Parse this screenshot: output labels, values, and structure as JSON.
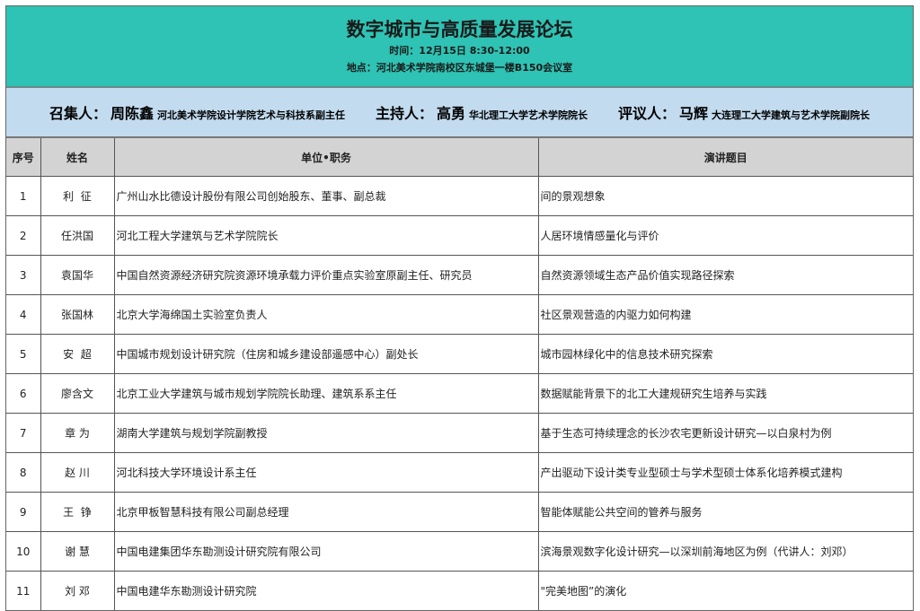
{
  "header": {
    "title": "数字城市与高质量发展论坛",
    "time": "时间：12月15日 8:30-12:00",
    "location": "地点：河北美术学院南校区东城堡一楼B150会议室"
  },
  "officials": [
    {
      "role": "召集人：",
      "name": "周陈鑫",
      "affiliation": "河北美术学院设计学院艺术与科技系副主任"
    },
    {
      "role": "主持人：",
      "name": "高勇",
      "affiliation": "华北理工大学艺术学院院长"
    },
    {
      "role": "评议人：",
      "name": "马辉",
      "affiliation": "大连理工大学建筑与艺术学院副院长"
    }
  ],
  "columns": [
    "序号",
    "姓名",
    "单位•职务",
    "演讲题目"
  ],
  "rows": [
    {
      "no": "1",
      "name": "利  征",
      "unit": "广州山水比德设计股份有限公司创始股东、董事、副总裁",
      "topic": "间的景观想象"
    },
    {
      "no": "2",
      "name": "任洪国",
      "unit": "河北工程大学建筑与艺术学院院长",
      "topic": "人居环境情感量化与评价"
    },
    {
      "no": "3",
      "name": "袁国华",
      "unit": "中国自然资源经济研究院资源环境承载力评价重点实验室原副主任、研究员",
      "topic": "自然资源领域生态产品价值实现路径探索"
    },
    {
      "no": "4",
      "name": "张国林",
      "unit": "北京大学海绵国土实验室负责人",
      "topic": "社区景观营造的内驱力如何构建"
    },
    {
      "no": "5",
      "name": "安  超",
      "unit": "中国城市规划设计研究院（住房和城乡建设部遥感中心）副处长",
      "topic": "城市园林绿化中的信息技术研究探索"
    },
    {
      "no": "6",
      "name": "廖含文",
      "unit": "北京工业大学建筑与城市规划学院院长助理、建筑系系主任",
      "topic": "数据赋能背景下的北工大建规研究生培养与实践"
    },
    {
      "no": "7",
      "name": "章 为",
      "unit": "湖南大学建筑与规划学院副教授",
      "topic": "基于生态可持续理念的长沙农宅更新设计研究—以白泉村为例"
    },
    {
      "no": "8",
      "name": "赵 川",
      "unit": "河北科技大学环境设计系主任",
      "topic": "产出驱动下设计类专业型硕士与学术型硕士体系化培养模式建构"
    },
    {
      "no": "9",
      "name": "王  铮",
      "unit": "北京甲板智慧科技有限公司副总经理",
      "topic": "智能体赋能公共空间的管养与服务"
    },
    {
      "no": "10",
      "name": "谢 慧",
      "unit": "中国电建集团华东勘测设计研究院有限公司",
      "topic": "滨海景观数字化设计研究—以深圳前海地区为例（代讲人：刘邓）"
    },
    {
      "no": "11",
      "name": "刘 邓",
      "unit": "中国电建华东勘测设计研究院",
      "topic": "\"完美地图”的演化"
    }
  ],
  "colors": {
    "title_band": "#2ec3b4",
    "officials_band": "#c3dbef",
    "header_row": "#d3d3d3"
  }
}
